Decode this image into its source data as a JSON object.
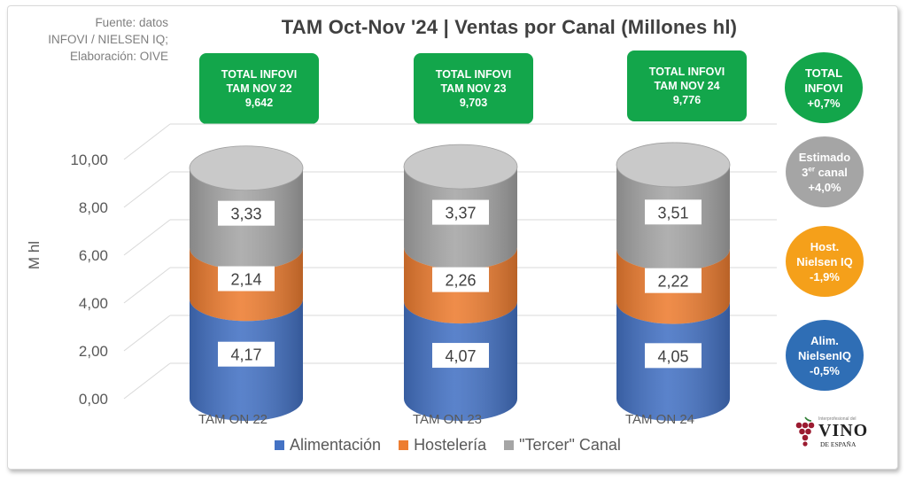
{
  "source_note": [
    "Fuente: datos",
    "INFOVI / NIELSEN IQ;",
    "Elaboración: OIVE"
  ],
  "chart_data": {
    "type": "bar",
    "stacked": true,
    "title": "TAM Oct-Nov '24 | Ventas por Canal (Millones hl)",
    "ylabel": "M hl",
    "ylim": [
      0,
      10
    ],
    "yticks": [
      "0,00",
      "2,00",
      "4,00",
      "6,00",
      "8,00",
      "10,00"
    ],
    "grid": true,
    "legend_position": "bottom",
    "categories": [
      "TAM ON 22",
      "TAM ON 23",
      "TAM ON 24"
    ],
    "series": [
      {
        "name": "Alimentación",
        "values": [
          4.17,
          4.07,
          4.05
        ],
        "labels": [
          "4,17",
          "4,07",
          "4,05"
        ],
        "color": "#4472c4"
      },
      {
        "name": "Hostelería",
        "values": [
          2.14,
          2.26,
          2.22
        ],
        "labels": [
          "2,14",
          "2,26",
          "2,22"
        ],
        "color": "#ed7d31"
      },
      {
        "name": "\"Tercer\" Canal",
        "values": [
          3.33,
          3.37,
          3.51
        ],
        "labels": [
          "3,33",
          "3,37",
          "3,51"
        ],
        "color": "#a5a5a5"
      }
    ],
    "totals": [
      {
        "line1": "TOTAL INFOVI",
        "line2": "TAM NOV 22",
        "value": "9,642"
      },
      {
        "line1": "TOTAL INFOVI",
        "line2": "TAM NOV 23",
        "value": "9,703"
      },
      {
        "line1": "TOTAL INFOVI",
        "line2": "TAM NOV 24",
        "value": "9,776"
      }
    ]
  },
  "changes": {
    "total": {
      "line1": "TOTAL",
      "line2": "INFOVI",
      "value": "+0,7%",
      "color": "#13a64b"
    },
    "tercer": {
      "line1": "Estimado",
      "line2_base": "3",
      "line2_sup": "er",
      "line2_rest": " canal",
      "value": "+4,0%",
      "color": "#a5a5a5"
    },
    "hosteleria": {
      "line1": "Host.",
      "line2": "Nielsen IQ",
      "value": "-1,9%",
      "color": "#f5a01a"
    },
    "alimentacion": {
      "line1": "Alim.",
      "line2": "NielsenIQ",
      "value": "-0,5%",
      "color": "#2f6eb5"
    }
  },
  "logo": {
    "small": "Interprofesional del",
    "big": "VINO",
    "sub": "DE ESPAÑA",
    "color": "#9b1b30"
  }
}
